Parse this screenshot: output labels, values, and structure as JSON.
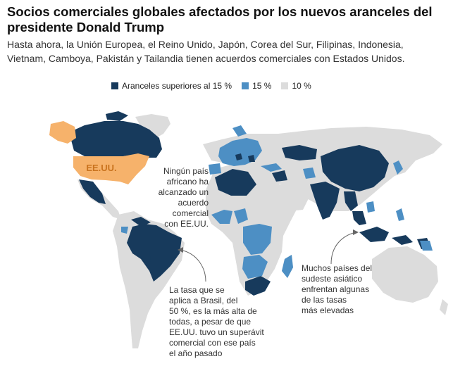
{
  "title_lines": [
    "Socios comerciales globales afectados por los nuevos aranceles del",
    "presidente Donald Trump"
  ],
  "subtitle_lines": [
    "Hasta ahora, la Unión Europea, el Reino Unido, Japón, Corea del Sur, Filipinas, Indonesia,",
    "Vietnam, Camboya, Pakistán y Tailandia tienen acuerdos comerciales con Estados Unidos."
  ],
  "legend": [
    {
      "label": "Aranceles superiores al 15 %",
      "color": "#173a5c"
    },
    {
      "label": "15 %",
      "color": "#4d8fc4"
    },
    {
      "label": "10 %",
      "color": "#dcdcdc"
    }
  ],
  "map": {
    "us_label": "EE.UU.",
    "us_color": "#f6b26b",
    "us_label_color": "#c9731e",
    "high_color": "#173a5c",
    "mid_color": "#4d8fc4",
    "base_color": "#dcdcdc"
  },
  "annotations": {
    "africa": [
      "Ningún país",
      "africano ha",
      "alcanzado un",
      "acuerdo",
      "comercial",
      "con EE.UU."
    ],
    "brazil": [
      "La tasa que se",
      "aplica a Brasil, del",
      "50 %, es la más alta de",
      "todas, a pesar de que",
      "EE.UU. tuvo un superávit",
      "comercial con ese país",
      "el año pasado"
    ],
    "asia": [
      "Muchos países del",
      "sudeste asiático",
      "enfrentan algunas",
      "de las tasas",
      "más elevadas"
    ]
  }
}
